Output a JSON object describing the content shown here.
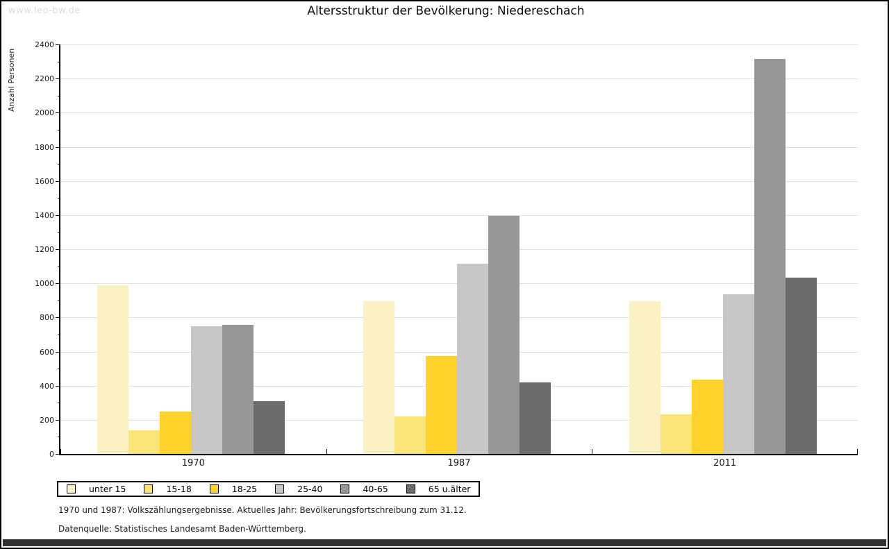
{
  "watermark": "www.leo-bw.de",
  "header": {
    "title": "Altersstruktur der Bevölkerung: Niedereschach"
  },
  "footnotes": {
    "line1": "1970 und 1987: Volkszählungsergebnisse. Aktuelles Jahr: Bevölkerungsfortschreibung zum 31.12.",
    "line2": "Datenquelle: Statistisches Landesamt Baden-Württemberg."
  },
  "colors": {
    "grid": "#e0e0e0",
    "axis": "#000000",
    "watermark": "#dcdcdc",
    "bottom_bar": "#323232"
  },
  "chart_data": {
    "type": "bar",
    "title": "Altersstruktur der Bevölkerung: Niedereschach",
    "xlabel": "",
    "ylabel": "Anzahl Personen",
    "categories": [
      "1970",
      "1987",
      "2011"
    ],
    "series": [
      {
        "name": "unter 15",
        "color": "#faf2c3",
        "values": [
          990,
          895,
          895
        ]
      },
      {
        "name": "15-18",
        "color": "#fbe579",
        "values": [
          140,
          220,
          230
        ]
      },
      {
        "name": "18-25",
        "color": "#fcd22b",
        "values": [
          250,
          575,
          435
        ]
      },
      {
        "name": "25-40",
        "color": "#c7c7c7",
        "values": [
          750,
          1115,
          935
        ]
      },
      {
        "name": "40-65",
        "color": "#979797",
        "values": [
          755,
          1395,
          2315
        ]
      },
      {
        "name": "65 u.älter",
        "color": "#6b6b6b",
        "values": [
          310,
          420,
          1035
        ]
      }
    ],
    "ylim": [
      0,
      2400
    ],
    "ytick_step": 200,
    "yminor_step": 100,
    "grid": true,
    "legend_position": "bottom"
  }
}
